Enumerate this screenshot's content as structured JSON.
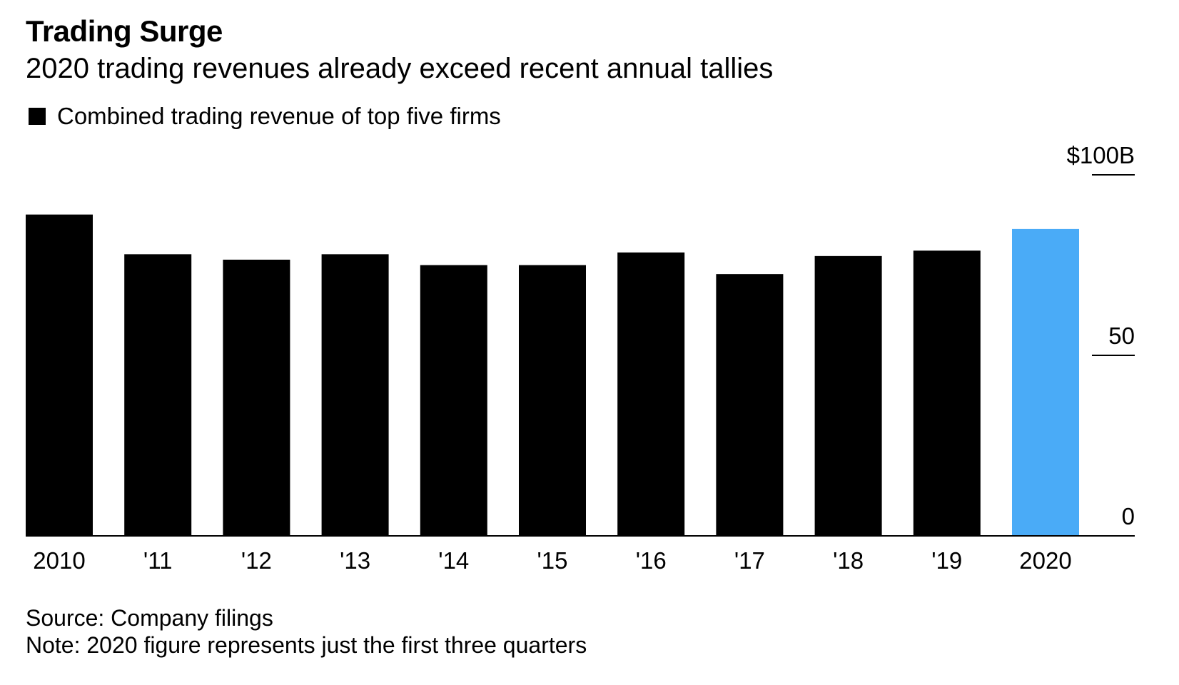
{
  "title": "Trading Surge",
  "subtitle": "2020 trading revenues already exceed recent annual tallies",
  "legend": {
    "label": "Combined trading revenue of top five firms",
    "color": "#000000"
  },
  "footer": {
    "source": "Source: Company filings",
    "note": "Note: 2020 figure represents just the first three quarters"
  },
  "colors": {
    "bar": "#000000",
    "highlight": "#4aabf7",
    "axis": "#000000"
  },
  "chart_data": {
    "type": "bar",
    "categories": [
      "2010",
      "'11",
      "'12",
      "'13",
      "'14",
      "'15",
      "'16",
      "'17",
      "'18",
      "'19",
      "2020"
    ],
    "values": [
      89,
      78,
      76.5,
      78,
      75,
      75,
      78.5,
      72.5,
      77.5,
      79,
      85
    ],
    "highlight_index": 10,
    "ylim": [
      0,
      100
    ],
    "yticks": [
      0,
      50,
      100
    ],
    "ytick_labels": [
      "0",
      "50",
      "$100B"
    ],
    "y_axis_position": "right",
    "title": "Trading Surge",
    "subtitle": "2020 trading revenues already exceed recent annual tallies",
    "legend": [
      "Combined trading revenue of top five firms"
    ],
    "legend_position": "top-left",
    "grid": false
  }
}
